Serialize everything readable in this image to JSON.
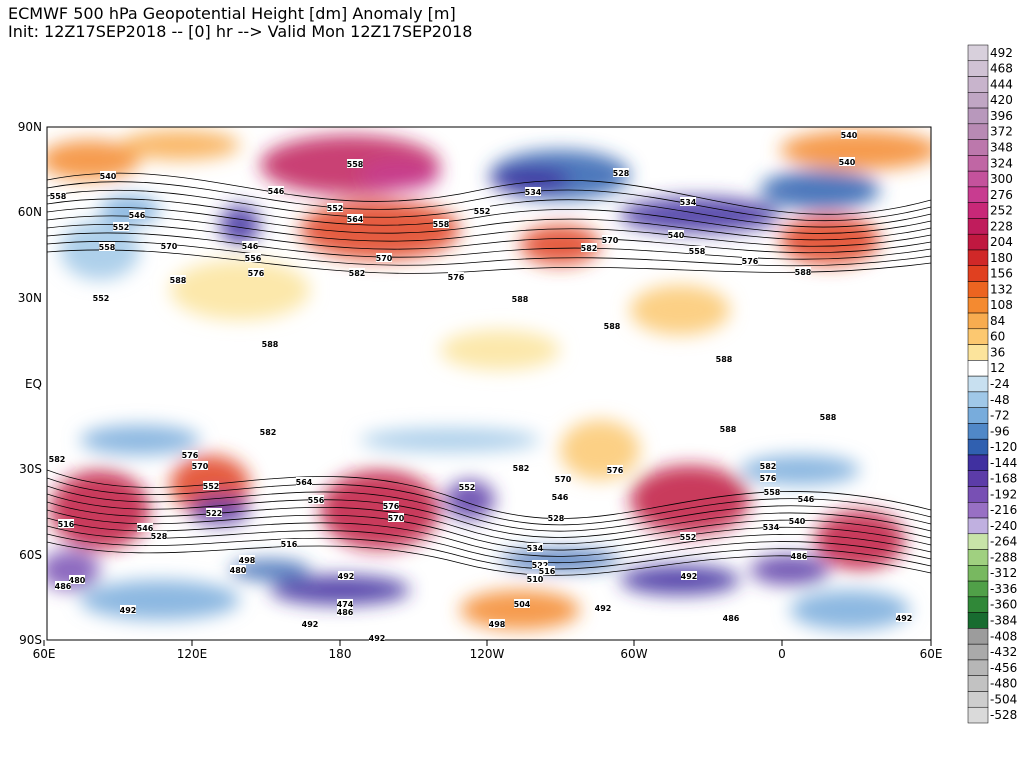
{
  "header": {
    "title": "ECMWF 500 hPa Geopotential Height [dm] Anomaly [m]",
    "subtitle": "Init: 12Z17SEP2018 -- [0] hr --> Valid Mon 12Z17SEP2018"
  },
  "map": {
    "lat_labels": [
      "90N",
      "60N",
      "30N",
      "EQ",
      "30S",
      "60S",
      "90S"
    ],
    "lon_labels": [
      "60E",
      "120E",
      "180",
      "120W",
      "60W",
      "0",
      "60E"
    ],
    "contour_labels": [
      "558",
      "546",
      "552",
      "564",
      "558",
      "552",
      "570",
      "582",
      "576",
      "588",
      "558",
      "540",
      "546",
      "552",
      "558",
      "570",
      "588",
      "552",
      "546",
      "556",
      "576",
      "588",
      "528",
      "534",
      "540",
      "558",
      "576",
      "588",
      "540",
      "540",
      "582",
      "588",
      "588",
      "588",
      "588",
      "582",
      "582",
      "576",
      "570",
      "552",
      "522",
      "564",
      "556",
      "576",
      "570",
      "552",
      "582",
      "570",
      "546",
      "528",
      "534",
      "522",
      "516",
      "510",
      "504",
      "576",
      "582",
      "576",
      "558",
      "546",
      "552",
      "540",
      "534",
      "486",
      "492",
      "492",
      "474",
      "486",
      "492",
      "492",
      "492",
      "498",
      "492",
      "486",
      "492",
      "480",
      "486",
      "546",
      "528",
      "480",
      "498",
      "516",
      "516",
      "570",
      "534"
    ]
  },
  "colorbar": {
    "labels": [
      "492",
      "468",
      "444",
      "420",
      "396",
      "372",
      "348",
      "324",
      "300",
      "276",
      "252",
      "228",
      "204",
      "180",
      "156",
      "132",
      "108",
      "84",
      "60",
      "36",
      "12",
      "-24",
      "-48",
      "-72",
      "-96",
      "-120",
      "-144",
      "-168",
      "-192",
      "-216",
      "-240",
      "-264",
      "-288",
      "-312",
      "-336",
      "-360",
      "-384",
      "-408",
      "-432",
      "-456",
      "-480",
      "-504",
      "-528"
    ],
    "colors": [
      "#d8d0dc",
      "#d0c2d4",
      "#c8b4cc",
      "#c0a6c4",
      "#b898bc",
      "#b88ab4",
      "#bc78ac",
      "#c066a4",
      "#c4529c",
      "#c83c90",
      "#c82878",
      "#c01c5c",
      "#c01840",
      "#d02828",
      "#e04020",
      "#ec6420",
      "#f48a30",
      "#f8ac50",
      "#fcc870",
      "#fce49c",
      "#ffffff",
      "#c8e0f0",
      "#a0c8e8",
      "#78acdc",
      "#5088c8",
      "#3060b0",
      "#4030a0",
      "#5c3ca8",
      "#7850b4",
      "#9870c4",
      "#c0b0e0",
      "#c8e4a8",
      "#a0d080",
      "#78b860",
      "#50a048",
      "#308838",
      "#186c30",
      "#9c9c9c",
      "#aaaaaa",
      "#b6b6b6",
      "#c2c2c2",
      "#cecece",
      "#dadada"
    ]
  }
}
